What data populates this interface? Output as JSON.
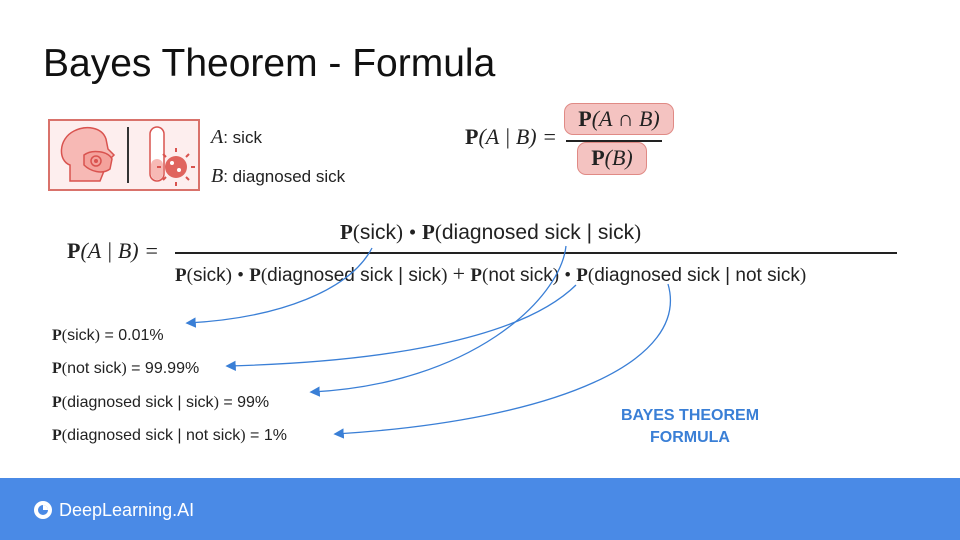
{
  "title": "Bayes Theorem - Formula",
  "legend": {
    "a_var": "A",
    "a_label": ": sick",
    "b_var": "B",
    "b_label": ": diagnosed sick"
  },
  "small_formula": {
    "lhs_P": "P",
    "lhs_args": "(A | B) =",
    "num_P": "P",
    "num_args": "(A ∩ B)",
    "den_P": "P",
    "den_args": "(B)"
  },
  "big_formula": {
    "lhs_P": "P",
    "lhs_args": "(A | B) =",
    "num_t1": "sick",
    "num_t2": "diagnosed sick | sick",
    "den_t1": "sick",
    "den_t2": "diagnosed sick | sick",
    "den_t3": "not sick",
    "den_t4": "diagnosed sick | not sick",
    "P": "P",
    "dot": "•",
    "plus": "+"
  },
  "values": [
    {
      "expr": "sick",
      "value": "= 0.01%"
    },
    {
      "expr": "not sick",
      "value": "= 99.99%"
    },
    {
      "expr": "diagnosed sick | sick",
      "value": "= 99%"
    },
    {
      "expr": "diagnosed sick | not sick",
      "value": "= 1%"
    }
  ],
  "callout": {
    "line1": "BAYES THEOREM",
    "line2": "FORMULA"
  },
  "brand": {
    "name": "DeepLearning.AI"
  },
  "colors": {
    "accent": "#4a8ae6",
    "arrow": "#3a7fd6",
    "highlight": "#f4c3c1",
    "icon_box_border": "#d9726b"
  },
  "icons": [
    "face-mask-person-icon",
    "test-tube-virus-icon"
  ]
}
